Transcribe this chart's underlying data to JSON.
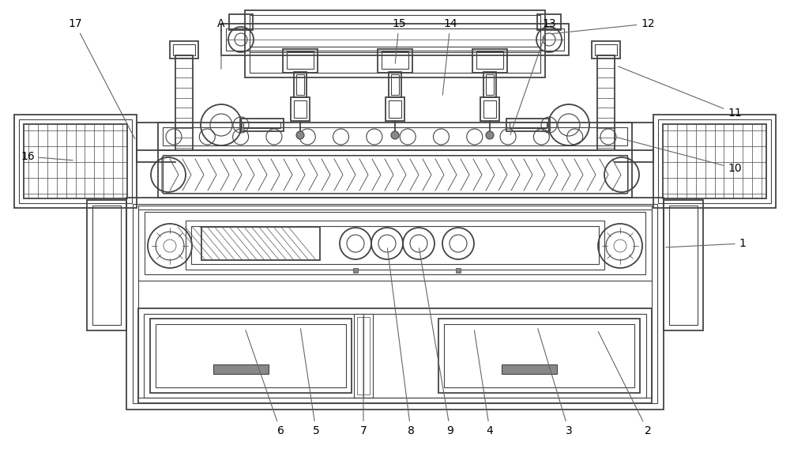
{
  "bg_color": "#ffffff",
  "lc": "#444444",
  "lc2": "#666666",
  "lw": 1.3,
  "lw2": 0.8,
  "lw3": 0.5
}
